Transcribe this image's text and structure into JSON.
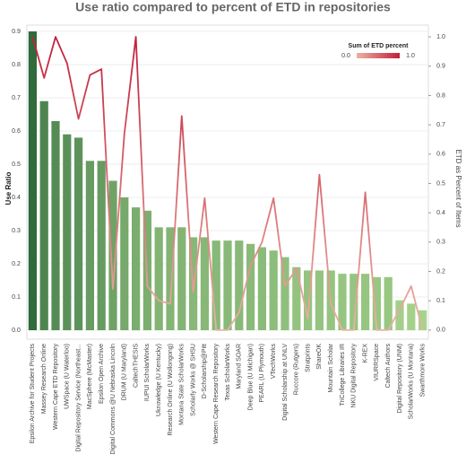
{
  "chart_data": {
    "type": "bar_line",
    "title": "Use ratio compared to percent of ETD in repositories",
    "y_label": "Use Ratio",
    "y2_label": "ETD as Percent of Items",
    "legend_title": "Sum of ETD percent",
    "legend_ticks": [
      {
        "value": 0,
        "label": "0.0"
      },
      {
        "value": 1,
        "label": "1.0"
      }
    ],
    "categories": [
      "Epsilon Archive for Student Projects",
      "Massey Research Online",
      "Western Cape ETD Repository",
      "UWSpace (U Waterloo)",
      "Digital Repository Service (Northeast...",
      "MacSphere (McMaster)",
      "Epsilon Open Archive",
      "Digital Commons @U Nebraska Lincoln",
      "DRUM (U Maryland)",
      "CaltechTHESIS",
      "IUPUI ScholarWorks",
      "Uknowledge (U Kentucky)",
      "Research Online (U Wollongong)",
      "Montana State ScholarWorks",
      "Scholarly Works @ SHSU",
      "D-Scholarship@Pitt",
      "Western Cape Research Repository",
      "Texas ScholarWorks",
      "Maryland SOAR",
      "Deep Blue (U Michigan)",
      "PEARL (U Plymouth)",
      "VTechWorks",
      "Digital Scholarship at UNLV",
      "Ruccore (Rutgers)",
      "Stratprints",
      "ShareOK",
      "Mountain Scholar",
      "TriCollege Libraries IR",
      "NKU Digital Repository",
      "K-REX",
      "VIURRSpace",
      "Caltech Authors",
      "Digital Repository (UNM)",
      "ScholarWorks (U Montana)",
      "Swarthmore Works"
    ],
    "series": [
      {
        "name": "Use Ratio",
        "type": "bar",
        "color_range": [
          "#a6d38c",
          "#2f6b3b"
        ],
        "values": [
          0.9,
          0.69,
          0.63,
          0.59,
          0.58,
          0.51,
          0.51,
          0.45,
          0.4,
          0.37,
          0.36,
          0.31,
          0.31,
          0.31,
          0.28,
          0.28,
          0.27,
          0.27,
          0.27,
          0.26,
          0.25,
          0.24,
          0.22,
          0.19,
          0.18,
          0.18,
          0.18,
          0.17,
          0.17,
          0.17,
          0.16,
          0.16,
          0.09,
          0.08,
          0.06
        ]
      },
      {
        "name": "Sum of ETD percent",
        "type": "line",
        "axis": "y2",
        "color_range": [
          "#eab3a4",
          "#c21f3a"
        ],
        "values": [
          1.0,
          0.86,
          1.0,
          0.91,
          0.72,
          0.87,
          0.89,
          0.14,
          0.67,
          1.0,
          0.15,
          0.1,
          0.09,
          0.73,
          0.13,
          0.45,
          0.0,
          0.0,
          0.06,
          0.22,
          0.3,
          0.45,
          0.15,
          0.21,
          0.04,
          0.53,
          0.09,
          0.0,
          0.0,
          0.47,
          0.0,
          0.0,
          0.07,
          0.15,
          0.0
        ]
      }
    ],
    "ylim": [
      -0.027,
      0.919
    ],
    "yticks": [
      {
        "value": 0,
        "label": "0.0"
      },
      0.1,
      0.2,
      0.3,
      0.4,
      0.5,
      0.6,
      0.7,
      0.8,
      0.9
    ],
    "y2lim": [
      -0.031,
      1.04
    ],
    "y2ticks": [
      {
        "value": 0,
        "label": "0.0"
      },
      0.1,
      0.2,
      0.3,
      0.4,
      0.5,
      0.6,
      0.7,
      0.8,
      0.9,
      {
        "value": 1,
        "label": "1.0"
      }
    ],
    "grid": true
  }
}
